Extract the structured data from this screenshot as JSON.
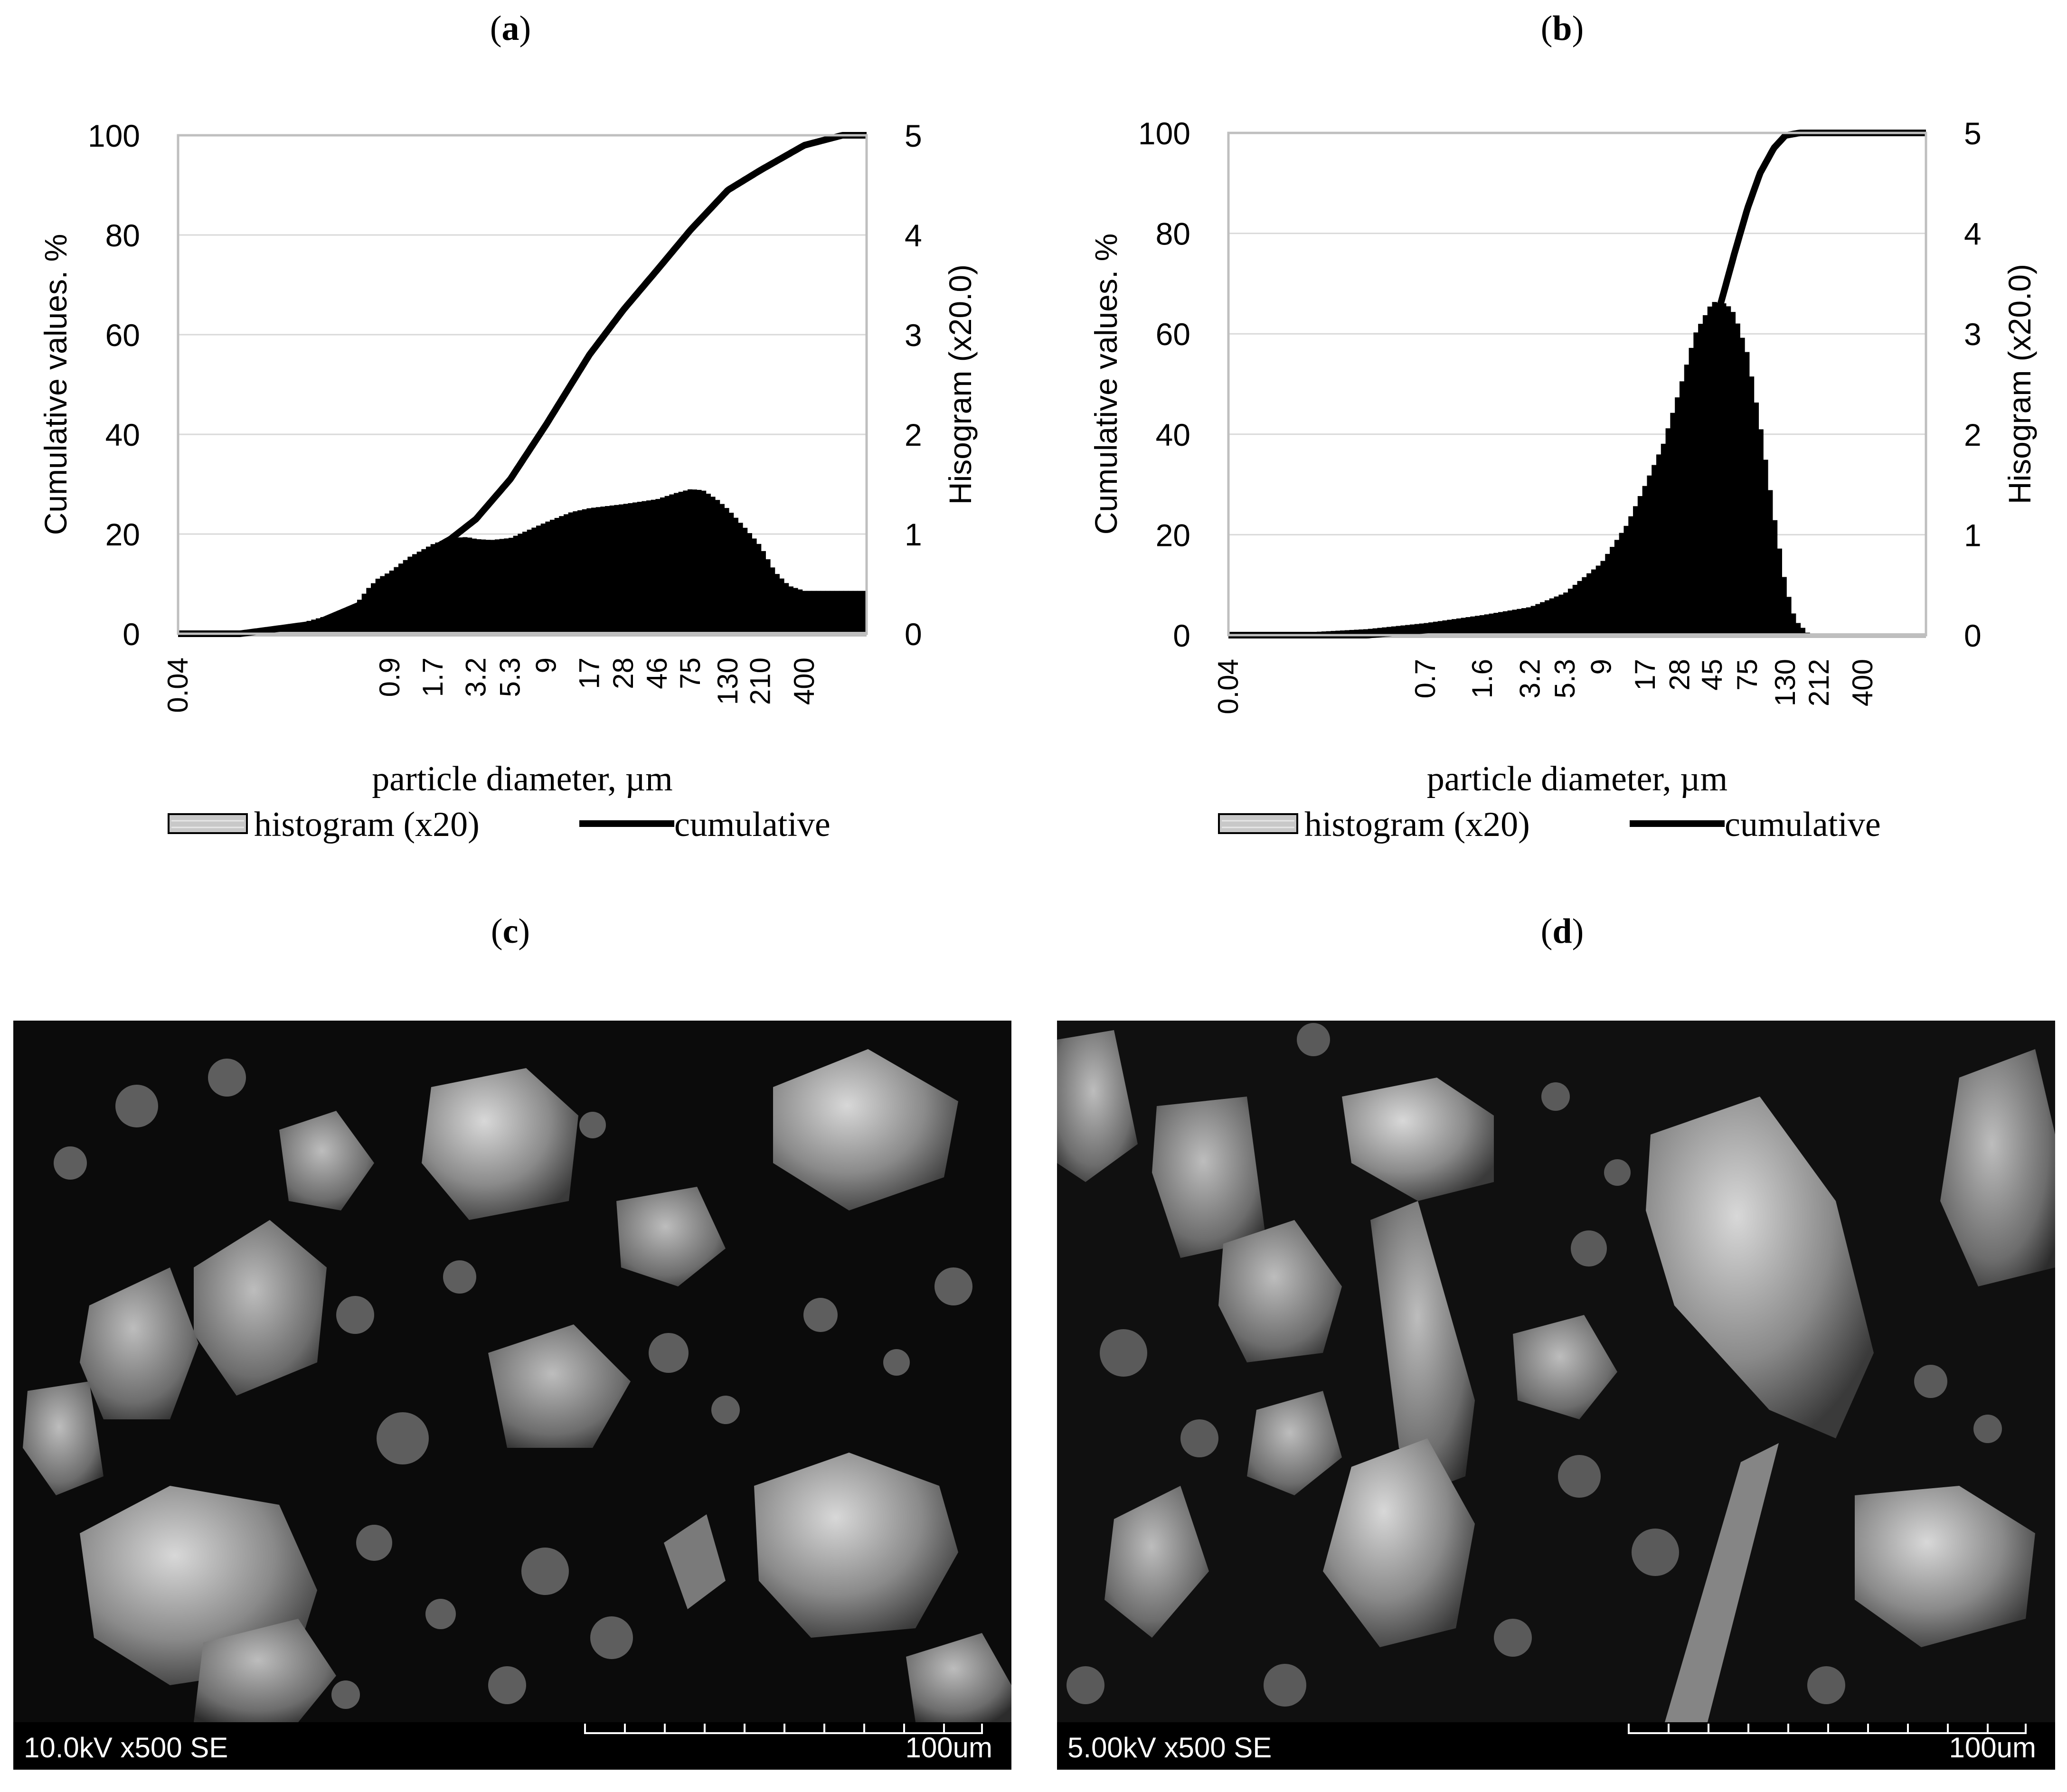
{
  "panels": {
    "a": {
      "label": "a"
    },
    "b": {
      "label": "b"
    },
    "c": {
      "label": "c"
    },
    "d": {
      "label": "d"
    }
  },
  "chart_data": [
    {
      "type": "bar",
      "panel": "a",
      "xlabel": "particle diameter, µm",
      "ylabel": "Cumulative values. %",
      "y2label": "Hisogram (x20.0)",
      "ylim": [
        0,
        100
      ],
      "y2lim": [
        0,
        5
      ],
      "yticks": [
        "0",
        "20",
        "40",
        "60",
        "80",
        "100"
      ],
      "y2ticks": [
        "0",
        "1",
        "2",
        "3",
        "4",
        "5"
      ],
      "xticks": [
        "0.04",
        "0.9",
        "1.7",
        "3.2",
        "5.3",
        "9",
        "17",
        "28",
        "46",
        "75",
        "130",
        "210",
        "400"
      ],
      "xtick_values": [
        0.04,
        0.9,
        1.7,
        3.2,
        5.3,
        9,
        17,
        28,
        46,
        75,
        130,
        210,
        400
      ],
      "xlim": [
        0.04,
        1000
      ],
      "x_scale": "log",
      "legend": [
        {
          "name": "histogram (x20)",
          "style": "bar"
        },
        {
          "name": "cumulative",
          "style": "line"
        }
      ],
      "legend_position": "bottom",
      "grid": "horizontal",
      "series": [
        {
          "name": "histogram (x20)",
          "axis": "y2",
          "points": [
            [
              0.04,
              0
            ],
            [
              0.06,
              0
            ],
            [
              0.1,
              0.02
            ],
            [
              0.2,
              0.07
            ],
            [
              0.4,
              0.2
            ],
            [
              0.55,
              0.3
            ],
            [
              0.65,
              0.45
            ],
            [
              0.75,
              0.55
            ],
            [
              0.9,
              0.62
            ],
            [
              1.2,
              0.77
            ],
            [
              1.7,
              0.9
            ],
            [
              2.2,
              0.96
            ],
            [
              2.8,
              0.97
            ],
            [
              3.2,
              0.95
            ],
            [
              4,
              0.94
            ],
            [
              5.3,
              0.96
            ],
            [
              9,
              1.12
            ],
            [
              13,
              1.22
            ],
            [
              17,
              1.26
            ],
            [
              28,
              1.3
            ],
            [
              46,
              1.35
            ],
            [
              60,
              1.41
            ],
            [
              75,
              1.45
            ],
            [
              90,
              1.44
            ],
            [
              110,
              1.35
            ],
            [
              130,
              1.25
            ],
            [
              170,
              1.05
            ],
            [
              210,
              0.88
            ],
            [
              260,
              0.62
            ],
            [
              320,
              0.48
            ],
            [
              400,
              0.43
            ],
            [
              500,
              0.43
            ],
            [
              700,
              0.43
            ],
            [
              1000,
              0.43
            ]
          ]
        },
        {
          "name": "cumulative",
          "axis": "y",
          "points": [
            [
              0.04,
              0
            ],
            [
              0.1,
              0
            ],
            [
              0.3,
              2
            ],
            [
              0.6,
              6
            ],
            [
              0.9,
              9
            ],
            [
              1.7,
              17
            ],
            [
              2.2,
              19
            ],
            [
              3.2,
              23
            ],
            [
              5.3,
              31
            ],
            [
              9,
              42
            ],
            [
              17,
              56
            ],
            [
              28,
              65
            ],
            [
              46,
              73
            ],
            [
              75,
              81
            ],
            [
              130,
              89
            ],
            [
              210,
              93
            ],
            [
              400,
              98
            ],
            [
              700,
              100
            ],
            [
              1000,
              100
            ]
          ]
        }
      ]
    },
    {
      "type": "bar",
      "panel": "b",
      "xlabel": "particle diameter, µm",
      "ylabel": "Cumulative values. %",
      "y2label": "Hisogram (x20.0)",
      "ylim": [
        0,
        100
      ],
      "y2lim": [
        0,
        5
      ],
      "yticks": [
        "0",
        "20",
        "40",
        "60",
        "80",
        "100"
      ],
      "y2ticks": [
        "0",
        "1",
        "2",
        "3",
        "4",
        "5"
      ],
      "xticks": [
        "0.04",
        "0.7",
        "1.6",
        "3.2",
        "5.3",
        "9",
        "17",
        "28",
        "45",
        "75",
        "130",
        "212",
        "400"
      ],
      "xtick_values": [
        0.04,
        0.7,
        1.6,
        3.2,
        5.3,
        9,
        17,
        28,
        45,
        75,
        130,
        212,
        400
      ],
      "xlim": [
        0.04,
        1000
      ],
      "x_scale": "log",
      "legend": [
        {
          "name": "histogram (x20)",
          "style": "bar"
        },
        {
          "name": "cumulative",
          "style": "line"
        }
      ],
      "legend_position": "bottom",
      "grid": "horizontal",
      "series": [
        {
          "name": "histogram (x20)",
          "axis": "y2",
          "points": [
            [
              0.04,
              0
            ],
            [
              0.1,
              0.02
            ],
            [
              0.3,
              0.06
            ],
            [
              0.7,
              0.12
            ],
            [
              1.6,
              0.2
            ],
            [
              3.2,
              0.28
            ],
            [
              5.3,
              0.42
            ],
            [
              9,
              0.72
            ],
            [
              13,
              1.1
            ],
            [
              17,
              1.5
            ],
            [
              22,
              1.9
            ],
            [
              28,
              2.45
            ],
            [
              35,
              3.0
            ],
            [
              45,
              3.32
            ],
            [
              55,
              3.3
            ],
            [
              62,
              3.2
            ],
            [
              75,
              2.8
            ],
            [
              90,
              2.1
            ],
            [
              110,
              1.2
            ],
            [
              130,
              0.5
            ],
            [
              150,
              0.15
            ],
            [
              180,
              0.02
            ],
            [
              212,
              0
            ],
            [
              400,
              0
            ],
            [
              1000,
              0
            ]
          ]
        },
        {
          "name": "cumulative",
          "axis": "y",
          "points": [
            [
              0.04,
              0
            ],
            [
              0.3,
              0
            ],
            [
              0.7,
              1
            ],
            [
              1.6,
              2
            ],
            [
              3.2,
              4
            ],
            [
              5.3,
              6
            ],
            [
              9,
              10
            ],
            [
              17,
              20
            ],
            [
              28,
              35
            ],
            [
              45,
              60
            ],
            [
              55,
              70
            ],
            [
              62,
              76
            ],
            [
              75,
              85
            ],
            [
              90,
              92
            ],
            [
              110,
              97
            ],
            [
              130,
              99.5
            ],
            [
              160,
              100
            ],
            [
              212,
              100
            ],
            [
              400,
              100
            ],
            [
              1000,
              100
            ]
          ]
        }
      ]
    }
  ],
  "sem": {
    "c": {
      "info": "10.0kV x500 SE",
      "scale": "100um"
    },
    "d": {
      "info": "5.00kV x500 SE",
      "scale": "100um"
    }
  }
}
